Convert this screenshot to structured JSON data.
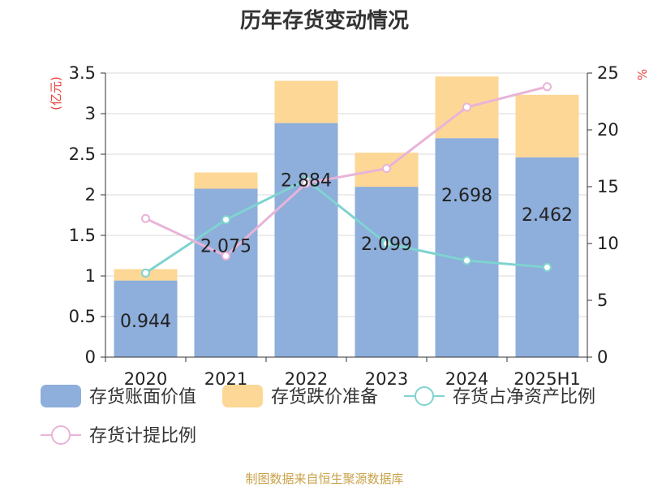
{
  "chart_data": {
    "type": "bar",
    "title": "历年存货变动情况",
    "categories": [
      "2020",
      "2021",
      "2022",
      "2023",
      "2024",
      "2025H1"
    ],
    "y_left_unit": "(亿元)",
    "y_right_unit": "%",
    "ylim_left": [
      0,
      3.5
    ],
    "ylim_right": [
      0,
      25
    ],
    "y_left_ticks": [
      "0",
      "0.5",
      "1",
      "1.5",
      "2",
      "2.5",
      "3",
      "3.5"
    ],
    "y_right_ticks": [
      "0",
      "5",
      "10",
      "15",
      "20",
      "25"
    ],
    "stacked": true,
    "grid": true,
    "legend_position": "bottom",
    "series": [
      {
        "name": "存货账面价值",
        "kind": "bar",
        "axis": "left",
        "color": "#8eaedb",
        "values": [
          0.944,
          2.075,
          2.884,
          2.099,
          2.698,
          2.462
        ],
        "labels": [
          "0.944",
          "2.075",
          "2.884",
          "2.099",
          "2.698",
          "2.462"
        ]
      },
      {
        "name": "存货跌价准备",
        "kind": "bar",
        "axis": "left",
        "color": "#fdd795",
        "values": [
          0.14,
          0.2,
          0.52,
          0.42,
          0.76,
          0.77
        ]
      },
      {
        "name": "存货占净资产比例",
        "kind": "line",
        "axis": "right",
        "color": "#7fd3d1",
        "values": [
          7.4,
          12.1,
          15.6,
          10.0,
          8.5,
          7.9
        ]
      },
      {
        "name": "存货计提比例",
        "kind": "line",
        "axis": "right",
        "color": "#e8b4d8",
        "values": [
          12.2,
          8.9,
          15.3,
          16.6,
          22.0,
          23.8
        ]
      }
    ]
  },
  "source": "制图数据来自恒生聚源数据库"
}
